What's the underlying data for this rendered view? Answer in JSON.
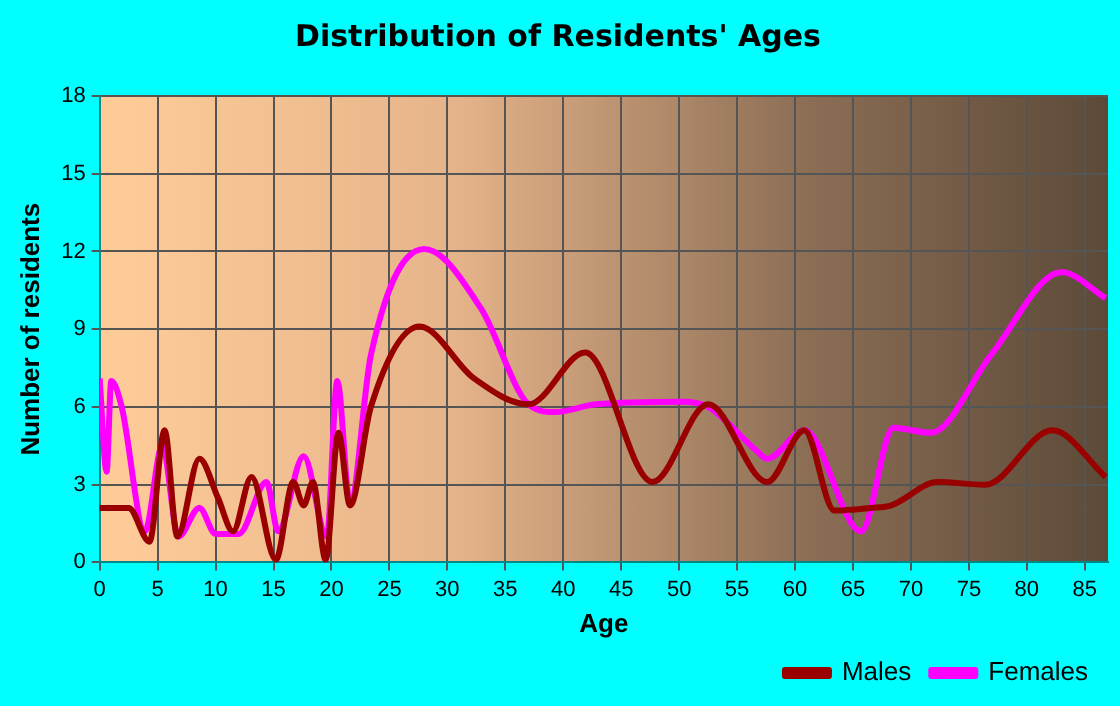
{
  "chart_data": {
    "type": "line",
    "title": "Distribution of Residents' Ages",
    "xlabel": "Age",
    "ylabel": "Number of residents",
    "xlim": [
      0,
      87
    ],
    "xticks": [
      0,
      5,
      10,
      15,
      20,
      25,
      30,
      35,
      40,
      45,
      50,
      55,
      60,
      65,
      70,
      75,
      80,
      85
    ],
    "ylim": [
      0,
      18
    ],
    "yticks": [
      0,
      3,
      6,
      9,
      12,
      15,
      18
    ],
    "grid": true,
    "legend": "bottom",
    "marker": "none",
    "series": [
      {
        "name": "Males",
        "color": "#990000",
        "x": [
          0,
          2.5,
          4.3,
          5.6,
          6.7,
          8.6,
          10.2,
          11.5,
          13.1,
          15.2,
          16.7,
          17.6,
          18.4,
          19.5,
          20.6,
          21.6,
          23.4,
          27.6,
          32.3,
          37,
          41.9,
          47.7,
          52.5,
          57.6,
          60.8,
          63.4,
          66.5,
          68.3,
          72.3,
          76.4,
          82.2,
          86.8
        ],
        "values": [
          2.1,
          2.1,
          0.8,
          5.1,
          1,
          4,
          2.5,
          1.2,
          3.3,
          0.1,
          3.1,
          2.2,
          3.1,
          0.1,
          5,
          2.2,
          6,
          9.1,
          7.1,
          6.1,
          8.1,
          3.1,
          6.1,
          3.1,
          5.1,
          2,
          2.1,
          2.2,
          3.1,
          3,
          5.1,
          3.3
        ]
      },
      {
        "name": "Females",
        "color": "#ff00ff",
        "x": [
          0,
          0.6,
          1,
          1.9,
          3.9,
          5.4,
          6.8,
          8.6,
          10,
          12,
          14.4,
          15.4,
          17.6,
          19.6,
          20.5,
          21.6,
          23.4,
          28,
          32.9,
          37,
          39.3,
          42.8,
          50.3,
          52.5,
          56.7,
          57.6,
          60.8,
          65.7,
          68.5,
          71.7,
          76.9,
          83,
          86.8
        ],
        "values": [
          7.1,
          3.5,
          7,
          6,
          1.2,
          4.5,
          1,
          2.1,
          1.1,
          1.1,
          3.1,
          1.2,
          4.1,
          1,
          7,
          2.3,
          8,
          12.1,
          9.8,
          6.1,
          5.8,
          6.1,
          6.2,
          6,
          4.3,
          4,
          5.1,
          1.2,
          5.2,
          5,
          8,
          11.2,
          10.2
        ]
      }
    ]
  }
}
